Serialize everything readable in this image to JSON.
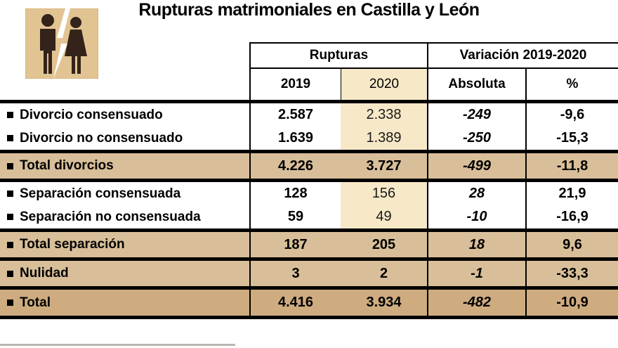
{
  "title": "Rupturas matrimoniales en Castilla y León",
  "colors": {
    "highlight_2020_column": "#f7e8c8",
    "total_row": "#d8bf99",
    "grand_total_row": "#ceac80",
    "line": "#000000",
    "icon_background": "#e2c493"
  },
  "icon": "divorce-couple-icon",
  "chart_data": {
    "type": "table",
    "title": "Rupturas matrimoniales en Castilla y León",
    "column_groups": [
      "Rupturas",
      "Variación 2019-2020"
    ],
    "columns": [
      "2019",
      "2020",
      "Absoluta",
      "%"
    ],
    "rows": [
      {
        "label": "Divorcio consensuado",
        "values": [
          "2.587",
          "2.338",
          "-249",
          "-9,6"
        ],
        "style": "normal"
      },
      {
        "label": "Divorcio no consensuado",
        "values": [
          "1.639",
          "1.389",
          "-250",
          "-15,3"
        ],
        "style": "normal"
      },
      {
        "label": "Total divorcios",
        "values": [
          "4.226",
          "3.727",
          "-499",
          "-11,8"
        ],
        "style": "total"
      },
      {
        "label": "Separación consensuada",
        "values": [
          "128",
          "156",
          "28",
          "21,9"
        ],
        "style": "normal"
      },
      {
        "label": "Separación no consensuada",
        "values": [
          "59",
          "49",
          "-10",
          "-16,9"
        ],
        "style": "normal"
      },
      {
        "label": "Total separación",
        "values": [
          "187",
          "205",
          "18",
          "9,6"
        ],
        "style": "total"
      },
      {
        "label": "Nulidad",
        "values": [
          "3",
          "2",
          "-1",
          "-33,3"
        ],
        "style": "total"
      },
      {
        "label": "Total",
        "values": [
          "4.416",
          "3.934",
          "-482",
          "-10,9"
        ],
        "style": "grand"
      }
    ]
  }
}
